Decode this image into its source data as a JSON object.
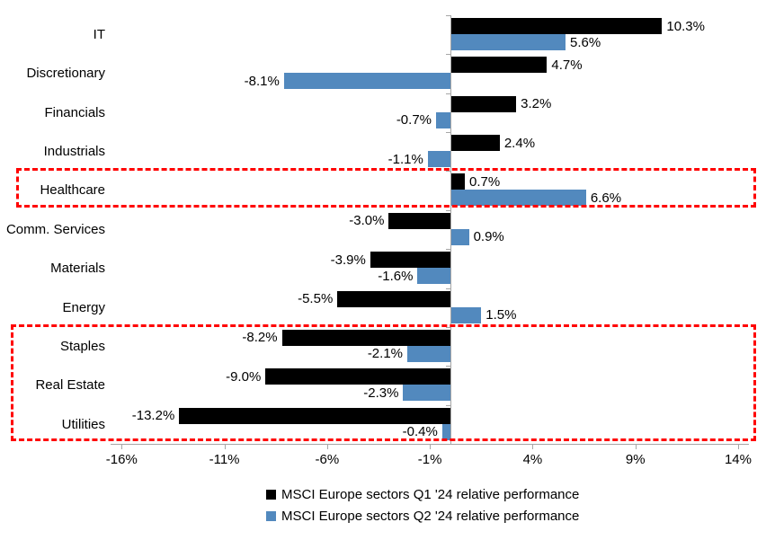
{
  "chart_data": {
    "type": "bar",
    "orientation": "horizontal",
    "title": "",
    "categories": [
      "IT",
      "Discretionary",
      "Financials",
      "Industrials",
      "Healthcare",
      "Comm. Services",
      "Materials",
      "Energy",
      "Staples",
      "Real Estate",
      "Utilities"
    ],
    "series": [
      {
        "name": "MSCI Europe sectors Q1 '24 relative performance",
        "color": "#000000",
        "values": [
          10.3,
          4.7,
          3.2,
          2.4,
          0.7,
          -3.0,
          -3.9,
          -5.5,
          -8.2,
          -9.0,
          -13.2
        ],
        "labels": [
          "10.3%",
          "4.7%",
          "3.2%",
          "2.4%",
          "0.7%",
          "-3.0%",
          "-3.9%",
          "-5.5%",
          "-8.2%",
          "-9.0%",
          "-13.2%"
        ]
      },
      {
        "name": "MSCI Europe sectors Q2 '24 relative performance",
        "color": "#5289BE",
        "values": [
          5.6,
          -8.1,
          -0.7,
          -1.1,
          6.6,
          0.9,
          -1.6,
          1.5,
          -2.1,
          -2.3,
          -0.4
        ],
        "labels": [
          "5.6%",
          "-8.1%",
          "-0.7%",
          "-1.1%",
          "6.6%",
          "0.9%",
          "-1.6%",
          "1.5%",
          "-2.1%",
          "-2.3%",
          "-0.4%"
        ]
      }
    ],
    "x_axis": {
      "tick_values": [
        -16,
        -11,
        -6,
        -1,
        4,
        9,
        14
      ],
      "tick_labels": [
        "-16%",
        "-11%",
        "-6%",
        "-1%",
        "4%",
        "9%",
        "14%"
      ],
      "range": [
        -16.5,
        14.5
      ]
    },
    "ylabel": "",
    "xlabel": "",
    "grid": false,
    "legend_position": "bottom",
    "highlights": [
      {
        "categories": [
          "Healthcare"
        ],
        "start_index": 4,
        "end_index": 4,
        "color": "#ff0000",
        "style": "dashed"
      },
      {
        "categories": [
          "Staples",
          "Real Estate",
          "Utilities"
        ],
        "start_index": 8,
        "end_index": 10,
        "color": "#ff0000",
        "style": "dashed"
      }
    ],
    "colors": {
      "axis": "#a6a6a6",
      "text": "#000000",
      "background": "#ffffff"
    }
  }
}
